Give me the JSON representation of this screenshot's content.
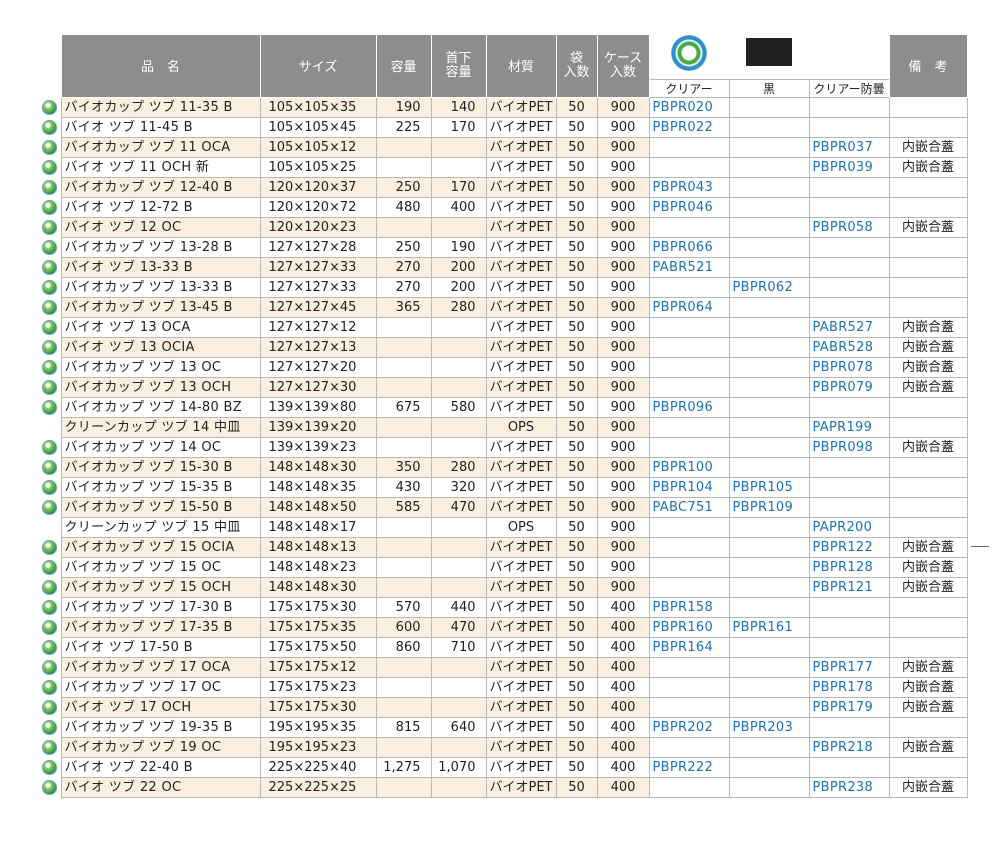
{
  "header": {
    "name": "品　名",
    "size": "サイズ",
    "capacity": "容量",
    "neck_capacity_top": "首下",
    "neck_capacity_bottom": "容量",
    "material": "材質",
    "bag_top": "袋",
    "bag_bottom": "入数",
    "case_top": "ケース",
    "case_bottom": "入数",
    "clear": "クリアー",
    "black": "黒",
    "clear_antifog": "クリアー防曇",
    "remarks": "備　考"
  },
  "rows": [
    {
      "icon": true,
      "name": "バイオカップ ツブ 11-35 B",
      "size": "105×105×35",
      "cap": "190",
      "neck": "140",
      "mat": "バイオPET",
      "bag": "50",
      "case": "900",
      "clear": "PBPR020",
      "black": "",
      "antifog": "",
      "note": ""
    },
    {
      "icon": true,
      "name": "バイオ ツブ 11-45 B",
      "size": "105×105×45",
      "cap": "225",
      "neck": "170",
      "mat": "バイオPET",
      "bag": "50",
      "case": "900",
      "clear": "PBPR022",
      "black": "",
      "antifog": "",
      "note": ""
    },
    {
      "icon": true,
      "name": "バイオカップ ツブ 11 OCA",
      "size": "105×105×12",
      "cap": "",
      "neck": "",
      "mat": "バイオPET",
      "bag": "50",
      "case": "900",
      "clear": "",
      "black": "",
      "antifog": "PBPR037",
      "note": "内嵌合蓋"
    },
    {
      "icon": true,
      "name": "バイオ ツブ 11 OCH 新",
      "size": "105×105×25",
      "cap": "",
      "neck": "",
      "mat": "バイオPET",
      "bag": "50",
      "case": "900",
      "clear": "",
      "black": "",
      "antifog": "PBPR039",
      "note": "内嵌合蓋"
    },
    {
      "icon": true,
      "name": "バイオカップ ツブ 12-40 B",
      "size": "120×120×37",
      "cap": "250",
      "neck": "170",
      "mat": "バイオPET",
      "bag": "50",
      "case": "900",
      "clear": "PBPR043",
      "black": "",
      "antifog": "",
      "note": ""
    },
    {
      "icon": true,
      "name": "バイオ ツブ 12-72 B",
      "size": "120×120×72",
      "cap": "480",
      "neck": "400",
      "mat": "バイオPET",
      "bag": "50",
      "case": "900",
      "clear": "PBPR046",
      "black": "",
      "antifog": "",
      "note": ""
    },
    {
      "icon": true,
      "name": "バイオ ツブ 12 OC",
      "size": "120×120×23",
      "cap": "",
      "neck": "",
      "mat": "バイオPET",
      "bag": "50",
      "case": "900",
      "clear": "",
      "black": "",
      "antifog": "PBPR058",
      "note": "内嵌合蓋"
    },
    {
      "icon": true,
      "name": "バイオカップ ツブ 13-28 B",
      "size": "127×127×28",
      "cap": "250",
      "neck": "190",
      "mat": "バイオPET",
      "bag": "50",
      "case": "900",
      "clear": "PBPR066",
      "black": "",
      "antifog": "",
      "note": ""
    },
    {
      "icon": true,
      "name": "バイオ ツブ 13-33 B",
      "size": "127×127×33",
      "cap": "270",
      "neck": "200",
      "mat": "バイオPET",
      "bag": "50",
      "case": "900",
      "clear": "PABR521",
      "black": "",
      "antifog": "",
      "note": ""
    },
    {
      "icon": true,
      "name": "バイオカップ ツブ 13-33 B",
      "size": "127×127×33",
      "cap": "270",
      "neck": "200",
      "mat": "バイオPET",
      "bag": "50",
      "case": "900",
      "clear": "",
      "black": "PBPR062",
      "antifog": "",
      "note": ""
    },
    {
      "icon": true,
      "name": "バイオカップ ツブ 13-45 B",
      "size": "127×127×45",
      "cap": "365",
      "neck": "280",
      "mat": "バイオPET",
      "bag": "50",
      "case": "900",
      "clear": "PBPR064",
      "black": "",
      "antifog": "",
      "note": ""
    },
    {
      "icon": true,
      "name": "バイオ ツブ 13 OCA",
      "size": "127×127×12",
      "cap": "",
      "neck": "",
      "mat": "バイオPET",
      "bag": "50",
      "case": "900",
      "clear": "",
      "black": "",
      "antifog": "PABR527",
      "note": "内嵌合蓋"
    },
    {
      "icon": true,
      "name": "バイオ ツブ 13 OCIA",
      "size": "127×127×13",
      "cap": "",
      "neck": "",
      "mat": "バイオPET",
      "bag": "50",
      "case": "900",
      "clear": "",
      "black": "",
      "antifog": "PABR528",
      "note": "内嵌合蓋"
    },
    {
      "icon": true,
      "name": "バイオカップ ツブ 13 OC",
      "size": "127×127×20",
      "cap": "",
      "neck": "",
      "mat": "バイオPET",
      "bag": "50",
      "case": "900",
      "clear": "",
      "black": "",
      "antifog": "PBPR078",
      "note": "内嵌合蓋"
    },
    {
      "icon": true,
      "name": "バイオカップ ツブ 13 OCH",
      "size": "127×127×30",
      "cap": "",
      "neck": "",
      "mat": "バイオPET",
      "bag": "50",
      "case": "900",
      "clear": "",
      "black": "",
      "antifog": "PBPR079",
      "note": "内嵌合蓋"
    },
    {
      "icon": true,
      "name": "バイオカップ ツブ 14-80 BZ",
      "size": "139×139×80",
      "cap": "675",
      "neck": "580",
      "mat": "バイオPET",
      "bag": "50",
      "case": "900",
      "clear": "PBPR096",
      "black": "",
      "antifog": "",
      "note": ""
    },
    {
      "icon": false,
      "name": "クリーンカップ ツブ 14 中皿",
      "size": "139×139×20",
      "cap": "",
      "neck": "",
      "mat": "OPS",
      "bag": "50",
      "case": "900",
      "clear": "",
      "black": "",
      "antifog": "PAPR199",
      "note": ""
    },
    {
      "icon": true,
      "name": "バイオカップ ツブ 14 OC",
      "size": "139×139×23",
      "cap": "",
      "neck": "",
      "mat": "バイオPET",
      "bag": "50",
      "case": "900",
      "clear": "",
      "black": "",
      "antifog": "PBPR098",
      "note": "内嵌合蓋"
    },
    {
      "icon": true,
      "name": "バイオカップ ツブ 15-30 B",
      "size": "148×148×30",
      "cap": "350",
      "neck": "280",
      "mat": "バイオPET",
      "bag": "50",
      "case": "900",
      "clear": "PBPR100",
      "black": "",
      "antifog": "",
      "note": ""
    },
    {
      "icon": true,
      "name": "バイオカップ ツブ 15-35 B",
      "size": "148×148×35",
      "cap": "430",
      "neck": "320",
      "mat": "バイオPET",
      "bag": "50",
      "case": "900",
      "clear": "PBPR104",
      "black": "PBPR105",
      "antifog": "",
      "note": ""
    },
    {
      "icon": true,
      "name": "バイオカップ ツブ 15-50 B",
      "size": "148×148×50",
      "cap": "585",
      "neck": "470",
      "mat": "バイオPET",
      "bag": "50",
      "case": "900",
      "clear": "PABC751",
      "black": "PBPR109",
      "antifog": "",
      "note": ""
    },
    {
      "icon": false,
      "name": "クリーンカップ ツブ 15 中皿",
      "size": "148×148×17",
      "cap": "",
      "neck": "",
      "mat": "OPS",
      "bag": "50",
      "case": "900",
      "clear": "",
      "black": "",
      "antifog": "PAPR200",
      "note": ""
    },
    {
      "icon": true,
      "name": "バイオカップ ツブ 15 OCIA",
      "size": "148×148×13",
      "cap": "",
      "neck": "",
      "mat": "バイオPET",
      "bag": "50",
      "case": "900",
      "clear": "",
      "black": "",
      "antifog": "PBPR122",
      "note": "内嵌合蓋"
    },
    {
      "icon": true,
      "name": "バイオカップ ツブ 15 OC",
      "size": "148×148×23",
      "cap": "",
      "neck": "",
      "mat": "バイオPET",
      "bag": "50",
      "case": "900",
      "clear": "",
      "black": "",
      "antifog": "PBPR128",
      "note": "内嵌合蓋"
    },
    {
      "icon": true,
      "name": "バイオカップ ツブ 15 OCH",
      "size": "148×148×30",
      "cap": "",
      "neck": "",
      "mat": "バイオPET",
      "bag": "50",
      "case": "900",
      "clear": "",
      "black": "",
      "antifog": "PBPR121",
      "note": "内嵌合蓋"
    },
    {
      "icon": true,
      "name": "バイオカップ ツブ 17-30 B",
      "size": "175×175×30",
      "cap": "570",
      "neck": "440",
      "mat": "バイオPET",
      "bag": "50",
      "case": "400",
      "clear": "PBPR158",
      "black": "",
      "antifog": "",
      "note": ""
    },
    {
      "icon": true,
      "name": "バイオカップ ツブ 17-35 B",
      "size": "175×175×35",
      "cap": "600",
      "neck": "470",
      "mat": "バイオPET",
      "bag": "50",
      "case": "400",
      "clear": "PBPR160",
      "black": "PBPR161",
      "antifog": "",
      "note": ""
    },
    {
      "icon": true,
      "name": "バイオ ツブ 17-50 B",
      "size": "175×175×50",
      "cap": "860",
      "neck": "710",
      "mat": "バイオPET",
      "bag": "50",
      "case": "400",
      "clear": "PBPR164",
      "black": "",
      "antifog": "",
      "note": ""
    },
    {
      "icon": true,
      "name": "バイオカップ ツブ 17 OCA",
      "size": "175×175×12",
      "cap": "",
      "neck": "",
      "mat": "バイオPET",
      "bag": "50",
      "case": "400",
      "clear": "",
      "black": "",
      "antifog": "PBPR177",
      "note": "内嵌合蓋"
    },
    {
      "icon": true,
      "name": "バイオカップ ツブ 17 OC",
      "size": "175×175×23",
      "cap": "",
      "neck": "",
      "mat": "バイオPET",
      "bag": "50",
      "case": "400",
      "clear": "",
      "black": "",
      "antifog": "PBPR178",
      "note": "内嵌合蓋"
    },
    {
      "icon": true,
      "name": "バイオ ツブ 17 OCH",
      "size": "175×175×30",
      "cap": "",
      "neck": "",
      "mat": "バイオPET",
      "bag": "50",
      "case": "400",
      "clear": "",
      "black": "",
      "antifog": "PBPR179",
      "note": "内嵌合蓋"
    },
    {
      "icon": true,
      "name": "バイオカップ ツブ 19-35 B",
      "size": "195×195×35",
      "cap": "815",
      "neck": "640",
      "mat": "バイオPET",
      "bag": "50",
      "case": "400",
      "clear": "PBPR202",
      "black": "PBPR203",
      "antifog": "",
      "note": ""
    },
    {
      "icon": true,
      "name": "バイオカップ ツブ 19 OC",
      "size": "195×195×23",
      "cap": "",
      "neck": "",
      "mat": "バイオPET",
      "bag": "50",
      "case": "400",
      "clear": "",
      "black": "",
      "antifog": "PBPR218",
      "note": "内嵌合蓋"
    },
    {
      "icon": true,
      "name": "バイオ ツブ 22-40 B",
      "size": "225×225×40",
      "cap": "1,275",
      "neck": "1,070",
      "mat": "バイオPET",
      "bag": "50",
      "case": "400",
      "clear": "PBPR222",
      "black": "",
      "antifog": "",
      "note": ""
    },
    {
      "icon": true,
      "name": "バイオ ツブ 22 OC",
      "size": "225×225×25",
      "cap": "",
      "neck": "",
      "mat": "バイオPET",
      "bag": "50",
      "case": "400",
      "clear": "",
      "black": "",
      "antifog": "PBPR238",
      "note": "内嵌合蓋"
    }
  ],
  "colors": {
    "header_bg": "#8d8d8d",
    "row_shade": "#fbefdf",
    "code_blue": "#1e72b8",
    "swatch_black": "#222222"
  },
  "icons": {
    "row_icon": "bio-leaf-icon",
    "logo": "biomass-mark-logo",
    "black_swatch": "black-color-swatch"
  }
}
